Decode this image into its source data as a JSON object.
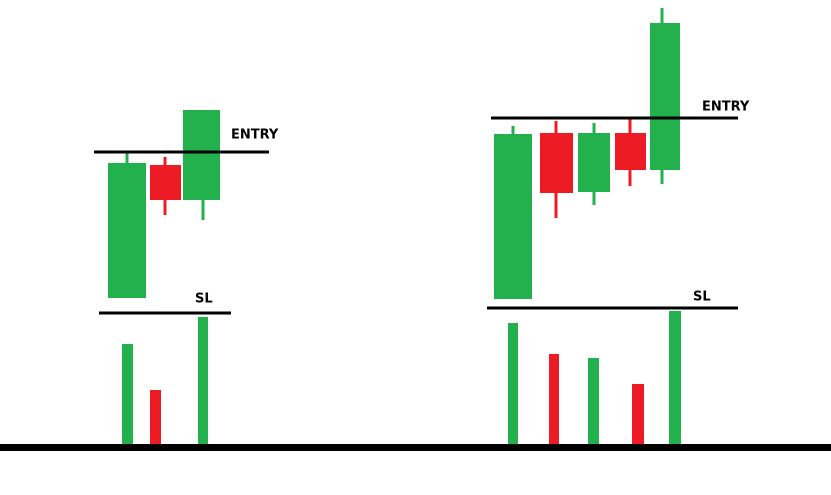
{
  "left_setup": {
    "entry_label": "ENTRY",
    "sl_label": "SL"
  },
  "right_setup": {
    "entry_label": "ENTRY",
    "sl_label": "SL"
  }
}
